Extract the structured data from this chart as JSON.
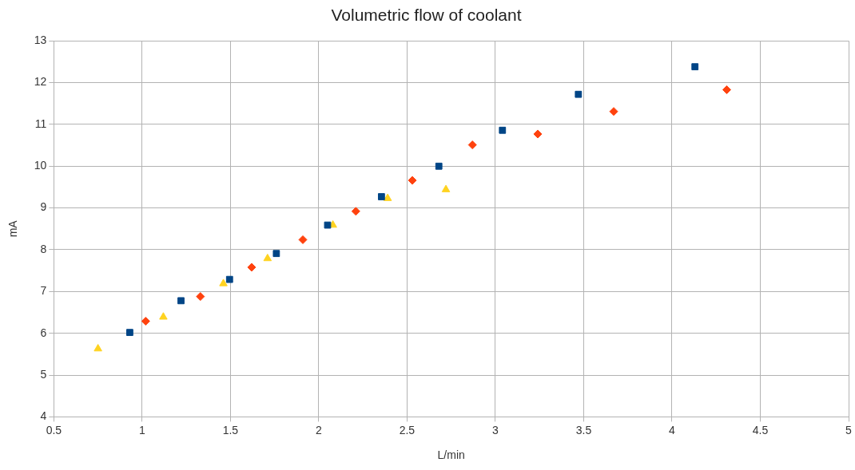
{
  "chart_data": {
    "type": "scatter",
    "title": "Volumetric flow of coolant",
    "xlabel": "L/min",
    "ylabel": "mA",
    "xlim": [
      0.5,
      5
    ],
    "xticks": [
      0.5,
      1,
      1.5,
      2,
      2.5,
      3,
      3.5,
      4,
      4.5,
      5
    ],
    "ylim": [
      4,
      13
    ],
    "yticks": [
      4,
      5,
      6,
      7,
      8,
      9,
      10,
      11,
      12,
      13
    ],
    "grid": true,
    "legend": false,
    "series": [
      {
        "color": "#004586",
        "marker": "square",
        "x": [
          0.93,
          1.22,
          1.495,
          1.76,
          2.05,
          2.355,
          2.68,
          3.04,
          3.47,
          4.13
        ],
        "values": [
          6.02,
          6.78,
          7.29,
          7.91,
          8.59,
          9.27,
          10.0,
          10.86,
          11.72,
          12.38
        ]
      },
      {
        "color": "#ff420e",
        "marker": "diamond",
        "x": [
          1.02,
          1.33,
          1.62,
          1.91,
          2.21,
          2.53,
          2.87,
          3.24,
          3.67,
          4.31
        ],
        "values": [
          6.29,
          6.88,
          7.58,
          8.24,
          8.92,
          9.66,
          10.51,
          10.77,
          11.31,
          11.83
        ]
      },
      {
        "color": "#ffd320",
        "marker": "triangle",
        "x": [
          0.75,
          1.12,
          1.46,
          1.71,
          2.08,
          2.39,
          2.72
        ],
        "values": [
          5.63,
          6.39,
          7.19,
          7.79,
          8.59,
          9.23,
          9.44
        ]
      }
    ]
  }
}
